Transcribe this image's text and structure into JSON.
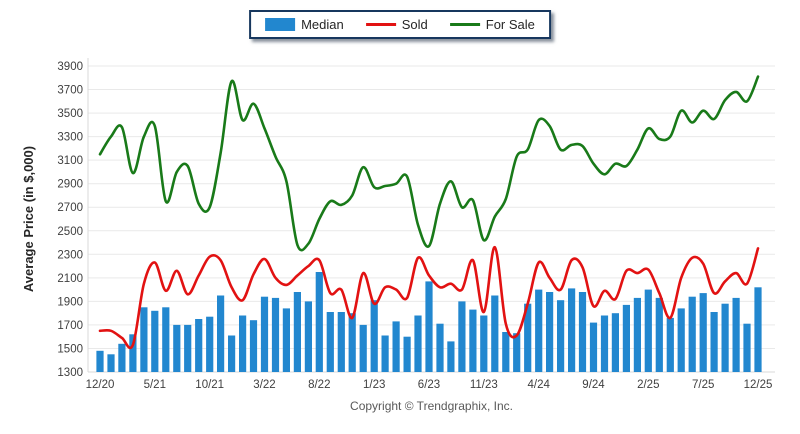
{
  "legend": {
    "items": [
      {
        "label": "Median",
        "type": "bar",
        "color": "#2287cf"
      },
      {
        "label": "Sold",
        "type": "line",
        "color": "#e21212"
      },
      {
        "label": "For Sale",
        "type": "line",
        "color": "#197a19"
      }
    ]
  },
  "y_axis_title": "Average Price (in $,000)",
  "footer": "Copyright © Trendgraphix, Inc.",
  "chart_data": {
    "type": "bar+line combo",
    "title": "",
    "xlabel": "",
    "ylabel": "Average Price (in $,000)",
    "ylim": [
      1300,
      3900
    ],
    "y_ticks": [
      1300,
      1500,
      1700,
      1900,
      2100,
      2300,
      2500,
      2700,
      2900,
      3100,
      3300,
      3500,
      3700,
      3900
    ],
    "grid": true,
    "legend_position": "top-center",
    "categories": [
      "12/20",
      "1/21",
      "2/21",
      "3/21",
      "4/21",
      "5/21",
      "6/21",
      "7/21",
      "8/21",
      "9/21",
      "10/21",
      "11/21",
      "12/21",
      "1/22",
      "2/22",
      "3/22",
      "4/22",
      "5/22",
      "6/22",
      "7/22",
      "8/22",
      "9/22",
      "10/22",
      "11/22",
      "12/22",
      "1/23",
      "2/23",
      "3/23",
      "4/23",
      "5/23",
      "6/23",
      "7/23",
      "8/23",
      "9/23",
      "10/23",
      "11/23",
      "12/23",
      "1/24",
      "2/24",
      "3/24",
      "4/24",
      "5/24",
      "6/24",
      "7/24",
      "8/24",
      "9/24",
      "10/24",
      "11/24",
      "12/24",
      "1/25",
      "2/25",
      "3/25",
      "4/25",
      "5/25",
      "6/25",
      "7/25",
      "8/25",
      "9/25",
      "10/25",
      "11/25",
      "12/25"
    ],
    "x_tick_labels": [
      "12/20",
      "5/21",
      "10/21",
      "3/22",
      "8/22",
      "1/23",
      "6/23",
      "11/23",
      "4/24",
      "9/24",
      "2/25",
      "7/25",
      "12/25"
    ],
    "series": [
      {
        "name": "Median",
        "type": "bar",
        "color": "#2287cf",
        "values": [
          1480,
          1450,
          1540,
          1620,
          1850,
          1820,
          1850,
          1700,
          1700,
          1750,
          1770,
          1950,
          1610,
          1780,
          1740,
          1940,
          1930,
          1840,
          1980,
          1900,
          2150,
          1810,
          1810,
          1800,
          1700,
          1910,
          1610,
          1730,
          1600,
          1780,
          2070,
          1710,
          1560,
          1900,
          1830,
          1780,
          1950,
          1640,
          1630,
          1880,
          2000,
          1980,
          1910,
          2010,
          1980,
          1720,
          1780,
          1800,
          1870,
          1930,
          2000,
          1930,
          1760,
          1840,
          1940,
          1970,
          1810,
          1880,
          1930,
          1710,
          2020
        ]
      },
      {
        "name": "Sold",
        "type": "line",
        "color": "#e21212",
        "values": [
          1650,
          1650,
          1590,
          1530,
          2050,
          2230,
          1990,
          2160,
          1960,
          2120,
          2280,
          2250,
          2020,
          1910,
          2130,
          2260,
          2100,
          2040,
          2120,
          2200,
          2250,
          1970,
          2000,
          1760,
          2140,
          1880,
          2020,
          2000,
          1930,
          2270,
          2120,
          2020,
          2050,
          2000,
          2250,
          1810,
          2360,
          1710,
          1610,
          1880,
          2230,
          2100,
          2000,
          2250,
          2190,
          1860,
          1990,
          1920,
          2160,
          2140,
          2170,
          1970,
          1760,
          2100,
          2270,
          2220,
          1970,
          2070,
          2140,
          2050,
          2350
        ]
      },
      {
        "name": "For Sale",
        "type": "line",
        "color": "#197a19",
        "values": [
          3150,
          3300,
          3380,
          2990,
          3300,
          3390,
          2750,
          3000,
          3050,
          2730,
          2700,
          3160,
          3770,
          3440,
          3580,
          3370,
          3130,
          2920,
          2380,
          2390,
          2600,
          2750,
          2720,
          2800,
          3040,
          2870,
          2880,
          2900,
          2960,
          2550,
          2370,
          2730,
          2920,
          2700,
          2760,
          2420,
          2620,
          2770,
          3130,
          3190,
          3440,
          3390,
          3190,
          3230,
          3220,
          3070,
          2980,
          3070,
          3050,
          3190,
          3370,
          3280,
          3300,
          3520,
          3420,
          3520,
          3450,
          3610,
          3680,
          3600,
          3810
        ]
      }
    ]
  },
  "style": {
    "grid_color": "#e9e9e9",
    "axis_color": "#d9d9d9",
    "tick_label_color": "#404040",
    "axis_title_color": "#262626"
  }
}
